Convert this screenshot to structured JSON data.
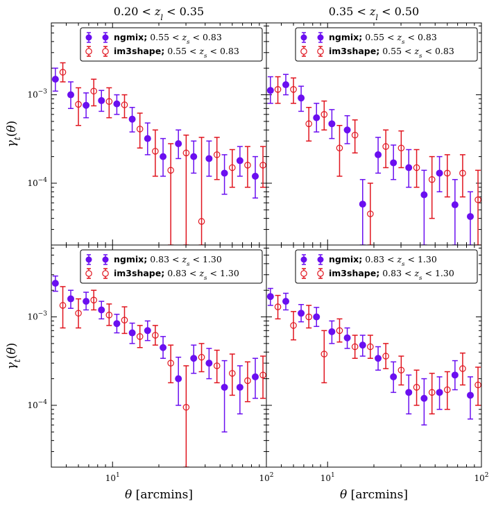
{
  "colors": {
    "ngmix": "#6a0ff0",
    "im3shape": "#e0141e",
    "frame": "#000000",
    "background": "#ffffff"
  },
  "ylabel": "γ_t(θ)",
  "xlabel": "θ [arcmins]",
  "columns": [
    {
      "title": "0.20 < z_l < 0.35"
    },
    {
      "title": "0.35 < z_l < 0.50"
    }
  ],
  "chart_data": [
    {
      "type": "scatter",
      "row": 0,
      "col": 0,
      "title": "0.20 < z_l < 0.35",
      "xscale": "log",
      "yscale": "log",
      "xlim": [
        4.0,
        100
      ],
      "ylim": [
        2e-05,
        0.0065
      ],
      "legend": {
        "placement": "top-right",
        "entries": [
          "ngmix; 0.55 < z_s < 0.83",
          "im3shape; 0.55 < z_s < 0.83"
        ]
      },
      "series": [
        {
          "name": "ngmix; 0.55 < z_s < 0.83",
          "marker": "filled-circle",
          "points": [
            [
              4.25,
              0.0015,
              0.0011,
              0.002
            ],
            [
              5.35,
              0.001,
              0.0007,
              0.0014
            ],
            [
              6.73,
              0.00076,
              0.00055,
              0.00105
            ],
            [
              8.47,
              0.00086,
              0.00065,
              0.00112
            ],
            [
              10.66,
              0.00079,
              0.0006,
              0.001
            ],
            [
              13.42,
              0.00053,
              0.00038,
              0.00072
            ],
            [
              16.9,
              0.00032,
              0.00021,
              0.00048
            ],
            [
              21.3,
              0.0002,
              0.00012,
              0.00032
            ],
            [
              26.8,
              0.00028,
              0.00019,
              0.0004
            ],
            [
              33.7,
              0.0002,
              0.00013,
              0.0003
            ],
            [
              42.4,
              0.00019,
              0.00012,
              0.0003
            ],
            [
              53.4,
              0.00013,
              7.5e-05,
              0.00021
            ],
            [
              67.3,
              0.00018,
              0.00012,
              0.00026
            ],
            [
              84.7,
              0.00012,
              6.8e-05,
              0.0002
            ]
          ]
        },
        {
          "name": "im3shape; 0.55 < z_s < 0.83",
          "marker": "open-circle",
          "points": [
            [
              4.75,
              0.0018,
              0.0014,
              0.0023
            ],
            [
              6.0,
              0.00078,
              0.00045,
              0.0012
            ],
            [
              7.55,
              0.0011,
              0.00075,
              0.0015
            ],
            [
              9.5,
              0.00084,
              0.00055,
              0.0012
            ],
            [
              11.96,
              0.00077,
              0.00055,
              0.001
            ],
            [
              15.06,
              0.00041,
              0.00025,
              0.00062
            ],
            [
              18.96,
              0.00023,
              0.00012,
              0.0004
            ],
            [
              23.9,
              0.00014,
              2e-05,
              0.00028
            ],
            [
              30.1,
              0.00022,
              2e-05,
              0.00035
            ],
            [
              37.9,
              3.7e-05,
              2e-05,
              0.00033
            ],
            [
              47.7,
              0.00021,
              0.00011,
              0.00033
            ],
            [
              60.0,
              0.00015,
              9e-05,
              0.00024
            ],
            [
              75.5,
              0.00016,
              9e-05,
              0.00026
            ],
            [
              95.0,
              0.00016,
              9e-05,
              0.00026
            ]
          ]
        }
      ]
    },
    {
      "type": "scatter",
      "row": 0,
      "col": 1,
      "title": "0.35 < z_l < 0.50",
      "xscale": "log",
      "yscale": "log",
      "xlim": [
        4.0,
        100
      ],
      "ylim": [
        2e-05,
        0.0065
      ],
      "legend": {
        "placement": "top-right",
        "entries": [
          "ngmix; 0.55 < z_s < 0.83",
          "im3shape; 0.55 < z_s < 0.83"
        ]
      },
      "series": [
        {
          "name": "ngmix; 0.55 < z_s < 0.83",
          "marker": "filled-circle",
          "points": [
            [
              4.25,
              0.00112,
              0.0008,
              0.0016
            ],
            [
              5.35,
              0.0013,
              0.001,
              0.0017
            ],
            [
              6.73,
              0.00092,
              0.00065,
              0.00125
            ],
            [
              8.47,
              0.00055,
              0.00038,
              0.0008
            ],
            [
              10.66,
              0.00047,
              0.00032,
              0.00068
            ],
            [
              13.42,
              0.0004,
              0.00028,
              0.00058
            ],
            [
              16.9,
              5.8e-05,
              2e-05,
              0.00011
            ],
            [
              21.3,
              0.00021,
              0.00013,
              0.00033
            ],
            [
              26.8,
              0.00017,
              0.00011,
              0.00027
            ],
            [
              33.7,
              0.00015,
              9e-05,
              0.00024
            ],
            [
              42.4,
              7.4e-05,
              2e-05,
              0.00014
            ],
            [
              53.4,
              0.00013,
              8e-05,
              0.0002
            ],
            [
              67.3,
              5.7e-05,
              2e-05,
              0.00011
            ],
            [
              84.7,
              4.2e-05,
              2e-05,
              8e-05
            ]
          ]
        },
        {
          "name": "im3shape; 0.55 < z_s < 0.83",
          "marker": "open-circle",
          "points": [
            [
              4.75,
              0.00115,
              0.0008,
              0.0016
            ],
            [
              6.0,
              0.00115,
              0.0008,
              0.00155
            ],
            [
              7.55,
              0.00047,
              0.0003,
              0.00072
            ],
            [
              9.5,
              0.0006,
              0.0004,
              0.00085
            ],
            [
              11.96,
              0.00025,
              0.00012,
              0.00045
            ],
            [
              15.06,
              0.00035,
              0.00022,
              0.00052
            ],
            [
              18.96,
              4.5e-05,
              2e-05,
              0.0001
            ],
            [
              23.9,
              0.00026,
              0.00015,
              0.0004
            ],
            [
              30.1,
              0.00025,
              0.00015,
              0.00039
            ],
            [
              37.9,
              0.00015,
              9e-05,
              0.00024
            ],
            [
              47.7,
              0.00011,
              4e-05,
              0.0002
            ],
            [
              60.0,
              0.00013,
              7e-05,
              0.00021
            ],
            [
              75.5,
              0.00013,
              7e-05,
              0.00021
            ],
            [
              95.0,
              6.5e-05,
              2e-05,
              0.00014
            ]
          ]
        }
      ]
    },
    {
      "type": "scatter",
      "row": 1,
      "col": 0,
      "title": "",
      "xscale": "log",
      "yscale": "log",
      "xlim": [
        4.0,
        100
      ],
      "ylim": [
        2e-05,
        0.0065
      ],
      "legend": {
        "placement": "top-right",
        "entries": [
          "ngmix; 0.83 < z_s < 1.30",
          "im3shape; 0.83 < z_s < 1.30"
        ]
      },
      "series": [
        {
          "name": "ngmix; 0.83 < z_s < 1.30",
          "marker": "filled-circle",
          "points": [
            [
              4.25,
              0.0024,
              0.00195,
              0.0029
            ],
            [
              5.35,
              0.0016,
              0.00125,
              0.002
            ],
            [
              6.73,
              0.0015,
              0.0012,
              0.0019
            ],
            [
              8.47,
              0.0012,
              0.00095,
              0.0015
            ],
            [
              10.66,
              0.00084,
              0.00066,
              0.00107
            ],
            [
              13.42,
              0.00066,
              0.0005,
              0.00085
            ],
            [
              16.9,
              0.0007,
              0.00054,
              0.0009
            ],
            [
              21.3,
              0.00045,
              0.00034,
              0.0006
            ],
            [
              26.8,
              0.0002,
              0.0001,
              0.00035
            ],
            [
              33.7,
              0.00034,
              0.00023,
              0.00048
            ],
            [
              42.4,
              0.0003,
              0.0002,
              0.00044
            ],
            [
              53.4,
              0.00016,
              5e-05,
              0.00032
            ],
            [
              67.3,
              0.00016,
              8e-05,
              0.00028
            ],
            [
              84.7,
              0.00021,
              0.00012,
              0.00034
            ]
          ]
        },
        {
          "name": "im3shape; 0.83 < z_s < 1.30",
          "marker": "open-circle",
          "points": [
            [
              4.75,
              0.00135,
              0.00075,
              0.0022
            ],
            [
              6.0,
              0.0011,
              0.00075,
              0.0016
            ],
            [
              7.55,
              0.00155,
              0.0012,
              0.002
            ],
            [
              9.5,
              0.00105,
              0.0008,
              0.0014
            ],
            [
              11.96,
              0.00092,
              0.00065,
              0.0013
            ],
            [
              15.06,
              0.0006,
              0.00045,
              0.0008
            ],
            [
              18.96,
              0.00062,
              0.00048,
              0.0008
            ],
            [
              23.9,
              0.0003,
              0.00018,
              0.00048
            ],
            [
              30.1,
              9.5e-05,
              2e-05,
              0.00028
            ],
            [
              37.9,
              0.00035,
              0.00024,
              0.0005
            ],
            [
              47.7,
              0.00028,
              0.00018,
              0.00042
            ],
            [
              60.0,
              0.00023,
              0.00013,
              0.00038
            ],
            [
              75.5,
              0.00019,
              0.00011,
              0.00031
            ],
            [
              95.0,
              0.00022,
              0.00012,
              0.00036
            ]
          ]
        }
      ]
    },
    {
      "type": "scatter",
      "row": 1,
      "col": 1,
      "title": "",
      "xscale": "log",
      "yscale": "log",
      "xlim": [
        4.0,
        100
      ],
      "ylim": [
        2e-05,
        0.0065
      ],
      "legend": {
        "placement": "top-right",
        "entries": [
          "ngmix; 0.83 < z_s < 1.30",
          "im3shape; 0.83 < z_s < 1.30"
        ]
      },
      "series": [
        {
          "name": "ngmix; 0.83 < z_s < 1.30",
          "marker": "filled-circle",
          "points": [
            [
              4.25,
              0.0017,
              0.00135,
              0.0021
            ],
            [
              5.35,
              0.0015,
              0.0012,
              0.00185
            ],
            [
              6.73,
              0.0011,
              0.00088,
              0.00138
            ],
            [
              8.47,
              0.001,
              0.00078,
              0.00128
            ],
            [
              10.66,
              0.00068,
              0.0005,
              0.0009
            ],
            [
              13.42,
              0.00058,
              0.00044,
              0.00075
            ],
            [
              16.9,
              0.00048,
              0.00036,
              0.00062
            ],
            [
              21.3,
              0.00034,
              0.00025,
              0.00046
            ],
            [
              26.8,
              0.00021,
              0.00014,
              0.00031
            ],
            [
              33.7,
              0.00014,
              8e-05,
              0.00022
            ],
            [
              42.4,
              0.00012,
              6e-05,
              0.0002
            ],
            [
              53.4,
              0.00014,
              9e-05,
              0.00021
            ],
            [
              67.3,
              0.00022,
              0.00015,
              0.00032
            ],
            [
              84.7,
              0.00013,
              7e-05,
              0.00021
            ]
          ]
        },
        {
          "name": "im3shape; 0.83 < z_s < 1.30",
          "marker": "open-circle",
          "points": [
            [
              4.75,
              0.0013,
              0.00095,
              0.00175
            ],
            [
              6.0,
              0.0008,
              0.00055,
              0.00115
            ],
            [
              7.55,
              0.001,
              0.00075,
              0.00135
            ],
            [
              9.5,
              0.00038,
              0.00018,
              0.0007
            ],
            [
              11.96,
              0.0007,
              0.00052,
              0.00095
            ],
            [
              15.06,
              0.00046,
              0.00034,
              0.00062
            ],
            [
              18.96,
              0.00046,
              0.00034,
              0.00062
            ],
            [
              23.9,
              0.00036,
              0.00026,
              0.0005
            ],
            [
              30.1,
              0.00025,
              0.00017,
              0.00036
            ],
            [
              37.9,
              0.00016,
              0.0001,
              0.00025
            ],
            [
              47.7,
              0.00014,
              8e-05,
              0.00023
            ],
            [
              60.0,
              0.00015,
              9e-05,
              0.00024
            ],
            [
              75.5,
              0.00026,
              0.00017,
              0.00039
            ],
            [
              95.0,
              0.00017,
              0.0001,
              0.00027
            ]
          ]
        }
      ]
    }
  ]
}
